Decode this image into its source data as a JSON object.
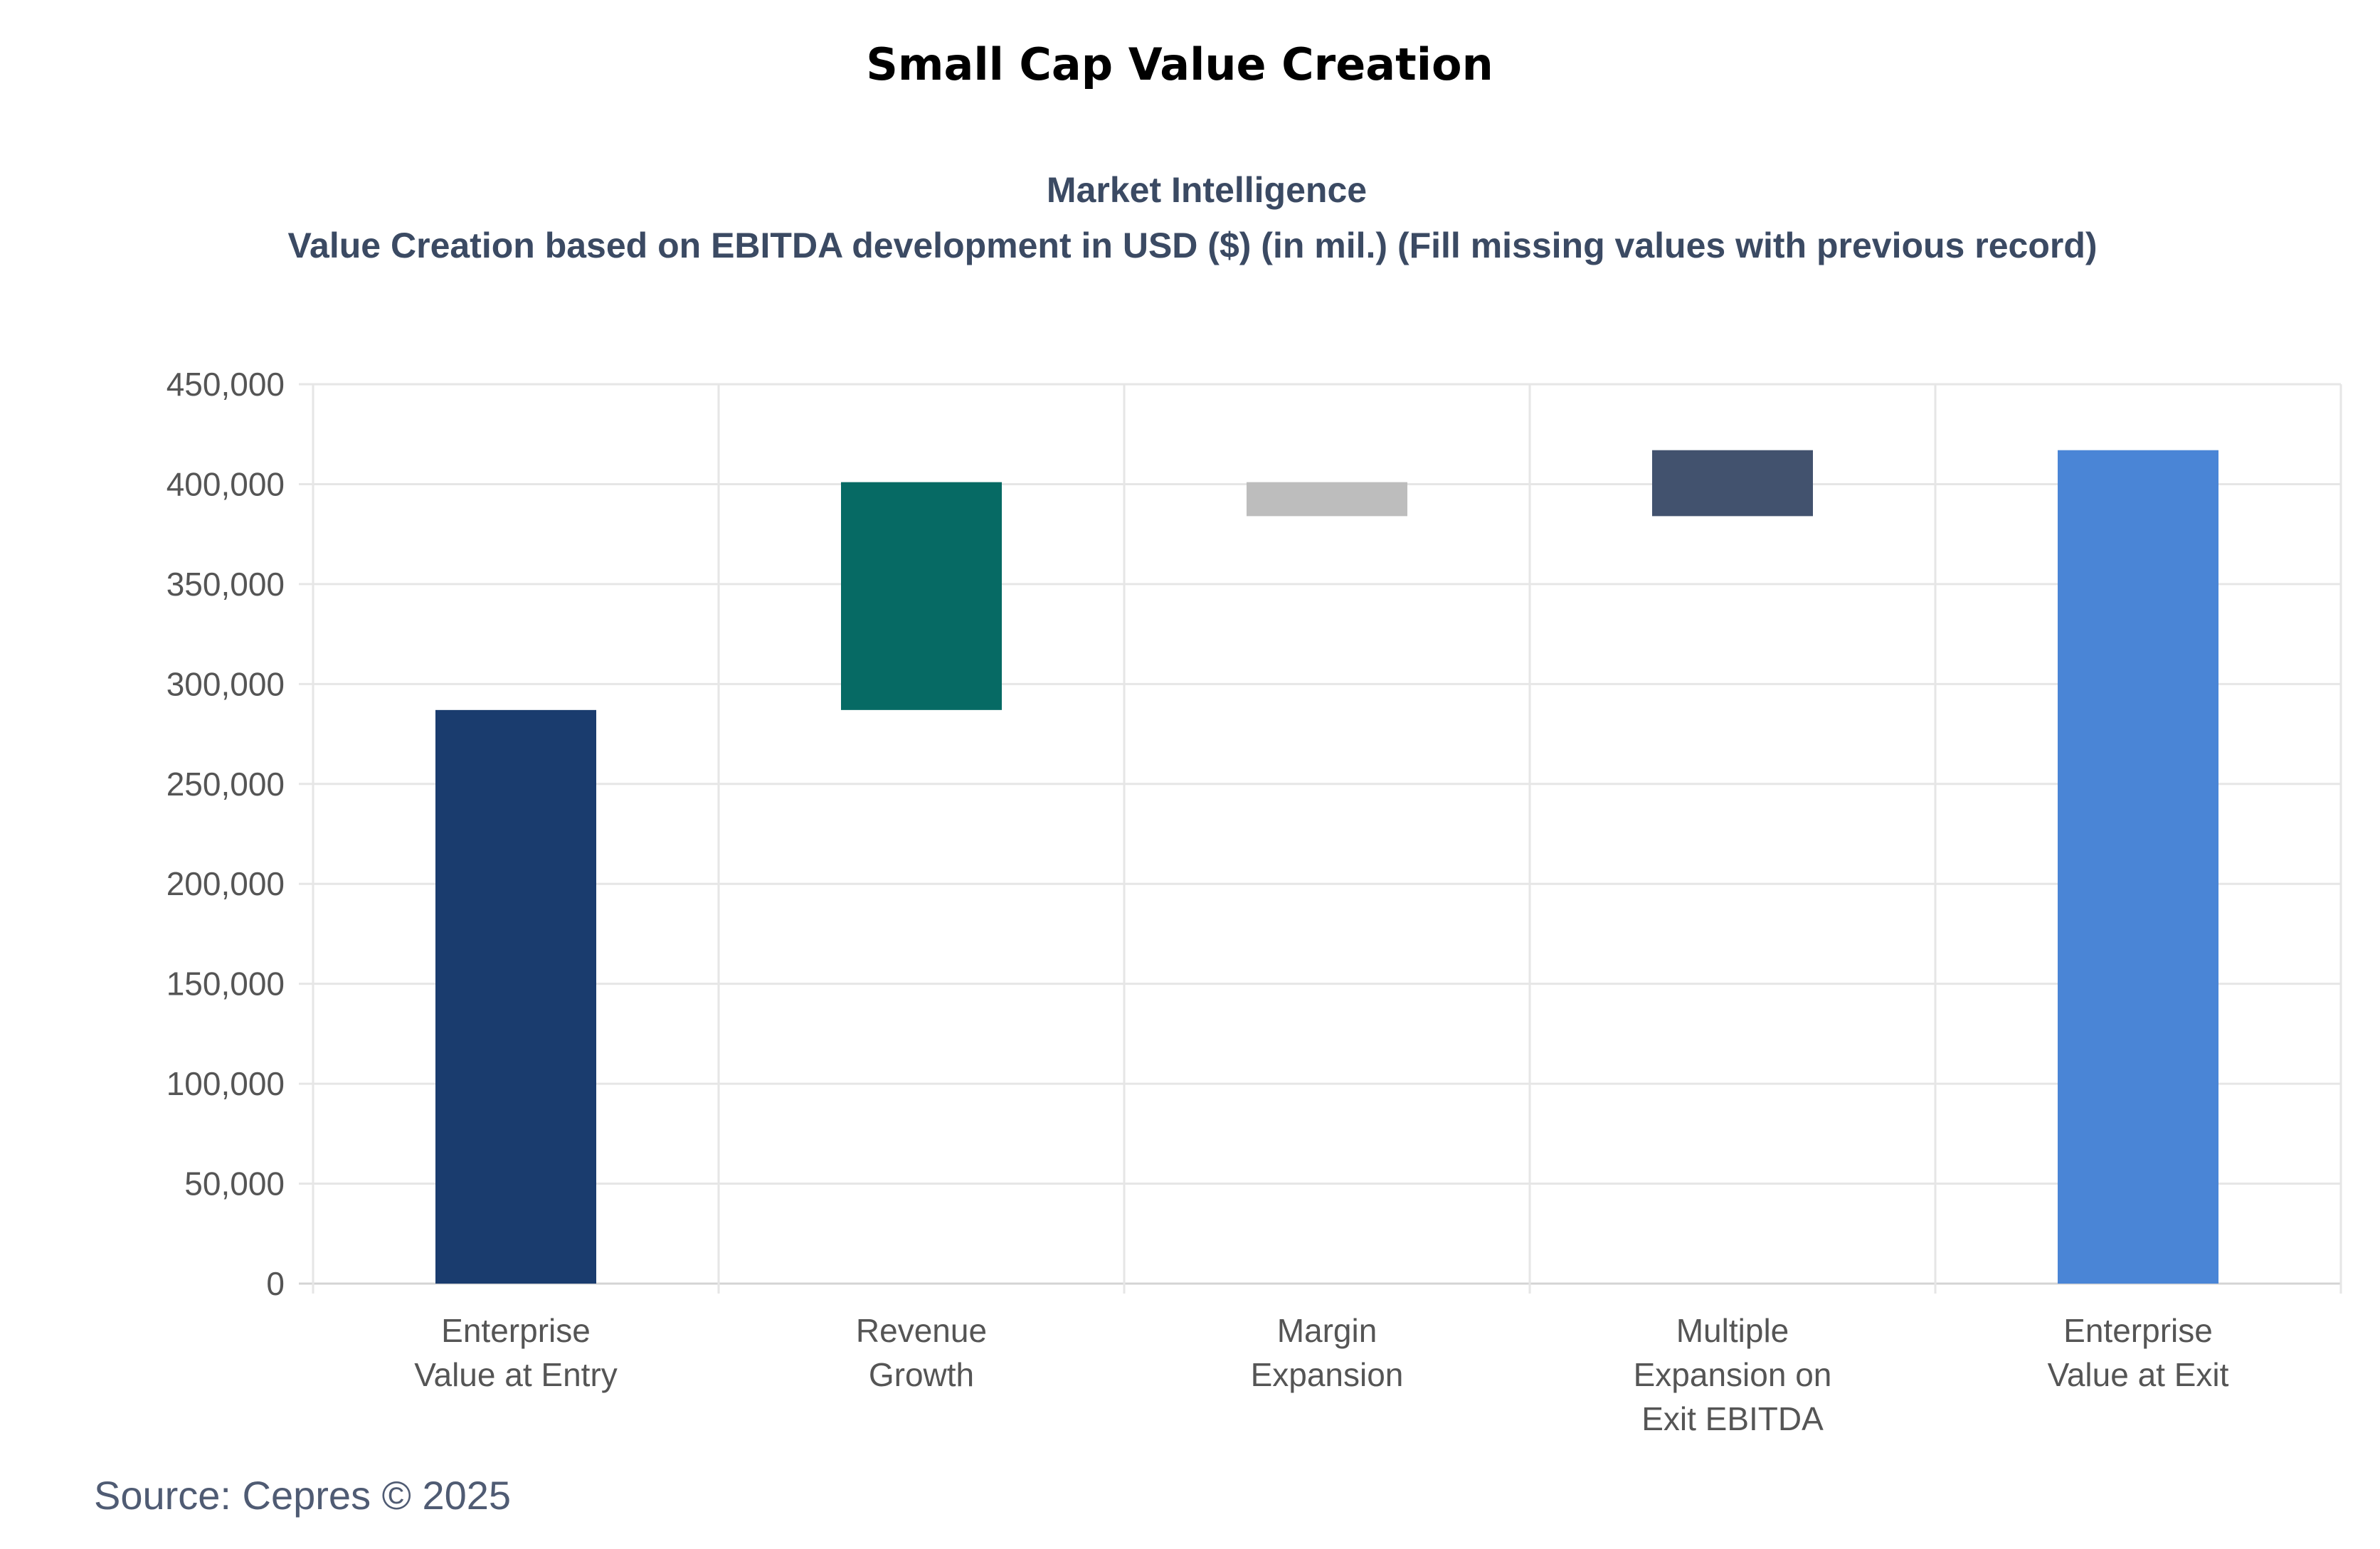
{
  "page_title": "Small Cap Value Creation",
  "source": "Source: Cepres © 2025",
  "chart_data": {
    "type": "bar",
    "subtype": "waterfall",
    "title": "Market Intelligence",
    "subtitle": "Value Creation based on EBITDA development in USD ($) (in mil.) (Fill missing values with previous record)",
    "xlabel": "",
    "ylabel": "",
    "ylim": [
      0,
      450000
    ],
    "yticks": [
      "0",
      "50,000",
      "100,000",
      "150,000",
      "200,000",
      "250,000",
      "300,000",
      "350,000",
      "400,000",
      "450,000"
    ],
    "ytick_values": [
      0,
      50000,
      100000,
      150000,
      200000,
      250000,
      300000,
      350000,
      400000,
      450000
    ],
    "grid": true,
    "categories": [
      [
        "Enterprise",
        "Value at Entry"
      ],
      [
        "Revenue",
        "Growth"
      ],
      [
        "Margin",
        "Expansion"
      ],
      [
        "Multiple",
        "Expansion on",
        "Exit EBITDA"
      ],
      [
        "Enterprise",
        "Value at Exit"
      ]
    ],
    "bars": [
      {
        "name": "Enterprise Value at Entry",
        "start": 0,
        "end": 287000,
        "color": "#1a3c6e"
      },
      {
        "name": "Revenue Growth",
        "start": 287000,
        "end": 401000,
        "color": "#066a64"
      },
      {
        "name": "Margin Expansion",
        "start": 401000,
        "end": 384000,
        "color": "#bdbdbd"
      },
      {
        "name": "Multiple Expansion on Exit EBITDA",
        "start": 384000,
        "end": 417000,
        "color": "#42526e"
      },
      {
        "name": "Enterprise Value at Exit",
        "start": 0,
        "end": 417000,
        "color": "#4a85d6"
      }
    ]
  }
}
